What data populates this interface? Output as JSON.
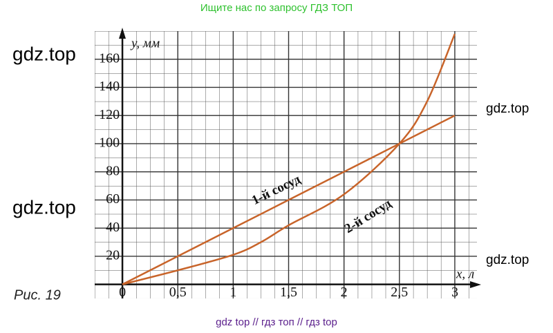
{
  "header": "Ищите нас по запросу ГДЗ ТОП",
  "watermarks": [
    "gdz.top",
    "gdz.top",
    "gdz.top",
    "gdz.top"
  ],
  "footer": "gdz top  //  гдз топ  //  гдз top",
  "figure_label": "Рис. 19",
  "chart_data": {
    "type": "line",
    "x_label": "x, л",
    "y_label": "y, мм",
    "series": [
      {
        "name": "1-й сосуд",
        "color": "#c8642a",
        "x": [
          0,
          0.5,
          1,
          1.5,
          2,
          2.5,
          3
        ],
        "values": [
          0,
          20,
          40,
          60,
          80,
          100,
          120
        ]
      },
      {
        "name": "2-й сосуд",
        "color": "#c8642a",
        "x": [
          0,
          0.5,
          1,
          1.25,
          1.5,
          2,
          2.5,
          2.75,
          3
        ],
        "values": [
          0,
          10,
          21,
          30,
          42,
          64,
          100,
          130,
          178
        ]
      }
    ],
    "xlim": [
      -0.25,
      3.2
    ],
    "ylim": [
      -10,
      180
    ],
    "xticks": [
      0,
      {
        "value": 0.5,
        "label": "0,5"
      },
      1,
      {
        "value": 1.5,
        "label": "1,5"
      },
      2,
      {
        "value": 2.5,
        "label": "2,5"
      },
      3
    ],
    "yticks": [
      20,
      40,
      60,
      80,
      100,
      120,
      140,
      160
    ],
    "grid": true
  }
}
